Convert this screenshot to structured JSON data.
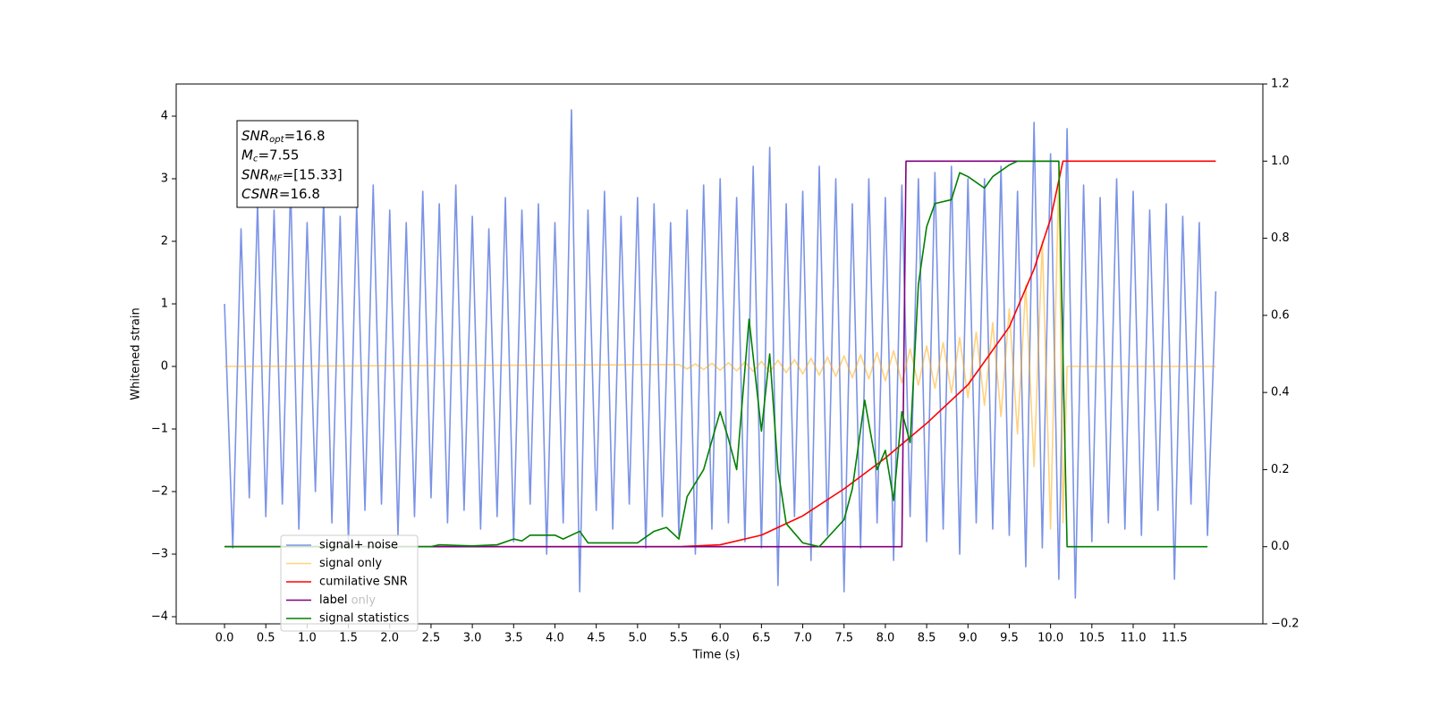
{
  "chart_data": {
    "type": "line",
    "xlabel": "Time (s)",
    "ylabel": "Whitened strain",
    "xlim": [
      -0.585,
      12.57
    ],
    "ylim": [
      -4.114,
      4.514
    ],
    "y2lim": [
      -0.2,
      1.2
    ],
    "xticks": [
      {
        "value": 0,
        "label": "0.0"
      },
      {
        "value": 0.5,
        "label": "0.5"
      },
      {
        "value": 1,
        "label": "1.0"
      },
      {
        "value": 1.5,
        "label": "1.5"
      },
      {
        "value": 2,
        "label": "2.0"
      },
      {
        "value": 2.5,
        "label": "2.5"
      },
      {
        "value": 3,
        "label": "3.0"
      },
      {
        "value": 3.5,
        "label": "3.5"
      },
      {
        "value": 4,
        "label": "4.0"
      },
      {
        "value": 4.5,
        "label": "4.5"
      },
      {
        "value": 5,
        "label": "5.0"
      },
      {
        "value": 5.5,
        "label": "5.5"
      },
      {
        "value": 6,
        "label": "6.0"
      },
      {
        "value": 6.5,
        "label": "6.5"
      },
      {
        "value": 7,
        "label": "7.0"
      },
      {
        "value": 7.5,
        "label": "7.5"
      },
      {
        "value": 8,
        "label": "8.0"
      },
      {
        "value": 8.5,
        "label": "8.5"
      },
      {
        "value": 9,
        "label": "9.0"
      },
      {
        "value": 9.5,
        "label": "9.5"
      },
      {
        "value": 10,
        "label": "10.0"
      },
      {
        "value": 10.5,
        "label": "10.5"
      },
      {
        "value": 11,
        "label": "11.0"
      },
      {
        "value": 11.5,
        "label": "11.5"
      }
    ],
    "yticks": [
      {
        "value": -4,
        "label": "−4"
      },
      {
        "value": -3,
        "label": "−3"
      },
      {
        "value": -2,
        "label": "−2"
      },
      {
        "value": -1,
        "label": "−1"
      },
      0,
      1,
      2,
      3,
      4
    ],
    "y2ticks": [
      {
        "value": -0.2,
        "label": "−0.2"
      },
      {
        "value": 0,
        "label": "0.0"
      },
      {
        "value": 0.2,
        "label": "0.2"
      },
      {
        "value": 0.4,
        "label": "0.4"
      },
      {
        "value": 0.6,
        "label": "0.6"
      },
      {
        "value": 0.8,
        "label": "0.8"
      },
      {
        "value": 1,
        "label": "1.0"
      },
      {
        "value": 1.2,
        "label": "1.2"
      }
    ],
    "grid": false,
    "legend": "lower left",
    "legend_ghost_labels": [
      "label only"
    ],
    "annotation": [
      {
        "symbol": "SNR",
        "subscript": "opt",
        "text": "=16.8"
      },
      {
        "symbol": "M",
        "subscript": "c",
        "text": "=7.55"
      },
      {
        "symbol": "SNR",
        "subscript": "MF",
        "text": "=[15.33]"
      },
      {
        "symbol": "CSNR",
        "text": "=16.8"
      }
    ],
    "series": [
      {
        "name": "signal+ noise",
        "color": "#7b93e6",
        "opacity": 1,
        "x": [
          0,
          0.1,
          0.2,
          0.3,
          0.4,
          0.5,
          0.6,
          0.7,
          0.8,
          0.9,
          1,
          1.1,
          1.2,
          1.3,
          1.4,
          1.5,
          1.6,
          1.7,
          1.8,
          1.9,
          2,
          2.1,
          2.2,
          2.3,
          2.4,
          2.5,
          2.6,
          2.7,
          2.8,
          2.9,
          3,
          3.1,
          3.2,
          3.3,
          3.4,
          3.5,
          3.6,
          3.7,
          3.8,
          3.9,
          4,
          4.1,
          4.2,
          4.3,
          4.4,
          4.5,
          4.6,
          4.7,
          4.8,
          4.9,
          5,
          5.1,
          5.2,
          5.3,
          5.4,
          5.5,
          5.6,
          5.7,
          5.8,
          5.9,
          6,
          6.1,
          6.2,
          6.3,
          6.4,
          6.5,
          6.6,
          6.7,
          6.8,
          6.9,
          7,
          7.1,
          7.2,
          7.3,
          7.4,
          7.5,
          7.6,
          7.7,
          7.8,
          7.9,
          8,
          8.1,
          8.2,
          8.3,
          8.4,
          8.5,
          8.6,
          8.7,
          8.8,
          8.9,
          9,
          9.1,
          9.2,
          9.3,
          9.4,
          9.5,
          9.6,
          9.7,
          9.8,
          9.9,
          10,
          10.1,
          10.2,
          10.3,
          10.4,
          10.5,
          10.6,
          10.7,
          10.8,
          10.9,
          11,
          11.1,
          11.2,
          11.3,
          11.4,
          11.5,
          11.6,
          11.7,
          11.8,
          11.9,
          12
        ],
        "values": [
          1.0,
          -2.9,
          2.2,
          -2.1,
          2.6,
          -2.4,
          2.5,
          -2.2,
          2.9,
          -2.6,
          2.3,
          -2.0,
          2.7,
          -2.5,
          2.4,
          -2.8,
          2.6,
          -2.3,
          2.9,
          -2.2,
          2.5,
          -2.7,
          2.3,
          -2.4,
          2.8,
          -2.1,
          2.6,
          -2.5,
          2.9,
          -2.3,
          2.4,
          -2.6,
          2.2,
          -2.4,
          2.7,
          -2.8,
          2.5,
          -2.2,
          2.6,
          -3.0,
          2.3,
          -2.5,
          4.1,
          -3.6,
          2.5,
          -2.3,
          2.8,
          -2.6,
          2.4,
          -2.2,
          2.7,
          -2.9,
          2.6,
          -2.4,
          2.3,
          -2.7,
          2.5,
          -3.0,
          2.9,
          -2.6,
          3.0,
          -2.5,
          2.7,
          -2.8,
          3.2,
          -2.9,
          3.5,
          -3.5,
          2.6,
          -2.4,
          2.8,
          -3.1,
          3.2,
          -2.7,
          3.0,
          -3.6,
          2.6,
          -2.9,
          3.0,
          -2.5,
          2.7,
          -3.1,
          2.9,
          -2.4,
          3.0,
          -2.8,
          3.1,
          -2.6,
          3.2,
          -3.0,
          3.0,
          -2.5,
          3.0,
          -2.6,
          3.2,
          -2.7,
          2.8,
          -3.2,
          3.9,
          -2.9,
          3.4,
          -3.4,
          3.8,
          -3.7,
          2.9,
          -2.8,
          2.7,
          -2.5,
          3.0,
          -2.6,
          2.8,
          -2.7,
          2.5,
          -2.3,
          2.6,
          -3.4,
          2.4,
          -2.2,
          2.3,
          -2.7,
          1.2
        ]
      },
      {
        "name": "signal only",
        "color": "#ffa500",
        "opacity": 0.5,
        "x": [
          0,
          5.5,
          5.6,
          5.7,
          5.8,
          5.9,
          6,
          6.1,
          6.2,
          6.3,
          6.4,
          6.5,
          6.6,
          6.7,
          6.8,
          6.9,
          7,
          7.1,
          7.2,
          7.3,
          7.4,
          7.5,
          7.6,
          7.7,
          7.8,
          7.9,
          8,
          8.1,
          8.2,
          8.3,
          8.4,
          8.5,
          8.6,
          8.7,
          8.8,
          8.9,
          9,
          9.1,
          9.2,
          9.3,
          9.4,
          9.5,
          9.6,
          9.7,
          9.8,
          9.9,
          10,
          10.1,
          10.15,
          10.2,
          12
        ],
        "values": [
          0,
          0.03,
          -0.04,
          0.04,
          -0.05,
          0.05,
          -0.06,
          0.06,
          -0.07,
          0.07,
          -0.08,
          0.08,
          -0.09,
          0.1,
          -0.1,
          0.11,
          -0.12,
          0.13,
          -0.14,
          0.15,
          -0.16,
          0.17,
          -0.18,
          0.19,
          -0.2,
          0.22,
          -0.23,
          0.25,
          -0.26,
          0.28,
          -0.3,
          0.33,
          -0.35,
          0.38,
          -0.42,
          0.46,
          -0.5,
          0.55,
          -0.62,
          0.7,
          -0.8,
          0.92,
          -1.08,
          1.3,
          -1.6,
          2.0,
          -2.6,
          3.1,
          -2.5,
          0,
          0
        ]
      },
      {
        "name": "cumilative SNR",
        "color": "#ff0000",
        "axis": "y2",
        "x": [
          0,
          5.5,
          6,
          6.5,
          7,
          7.5,
          8,
          8.5,
          9,
          9.5,
          9.8,
          10,
          10.1,
          10.15,
          12
        ],
        "values": [
          0,
          0,
          0.005,
          0.03,
          0.08,
          0.15,
          0.23,
          0.32,
          0.42,
          0.57,
          0.72,
          0.85,
          0.95,
          1.0,
          1.0
        ]
      },
      {
        "name": "label",
        "color": "#800080",
        "axis": "y2",
        "x": [
          0,
          8.2,
          8.25,
          10.1
        ],
        "values": [
          0,
          0,
          1,
          1
        ]
      },
      {
        "name": "signal statistics",
        "color": "#008000",
        "axis": "y2",
        "x": [
          0,
          2.5,
          2.6,
          3,
          3.3,
          3.5,
          3.6,
          3.7,
          4,
          4.1,
          4.3,
          4.4,
          5,
          5.2,
          5.35,
          5.5,
          5.6,
          5.8,
          6,
          6.1,
          6.2,
          6.35,
          6.5,
          6.6,
          6.7,
          6.8,
          7,
          7.2,
          7.5,
          7.6,
          7.75,
          7.9,
          8,
          8.1,
          8.2,
          8.3,
          8.4,
          8.5,
          8.6,
          8.8,
          8.9,
          9,
          9.2,
          9.3,
          9.5,
          9.6,
          10.1,
          10.2,
          11.9
        ],
        "values": [
          0,
          0,
          0.005,
          0.002,
          0.005,
          0.02,
          0.015,
          0.03,
          0.03,
          0.02,
          0.04,
          0.01,
          0.01,
          0.04,
          0.05,
          0.02,
          0.13,
          0.2,
          0.35,
          0.28,
          0.2,
          0.59,
          0.3,
          0.5,
          0.2,
          0.06,
          0.01,
          0,
          0.07,
          0.15,
          0.38,
          0.2,
          0.25,
          0.12,
          0.35,
          0.27,
          0.68,
          0.83,
          0.89,
          0.9,
          0.97,
          0.96,
          0.93,
          0.96,
          0.99,
          1,
          1,
          0,
          0
        ]
      }
    ]
  }
}
